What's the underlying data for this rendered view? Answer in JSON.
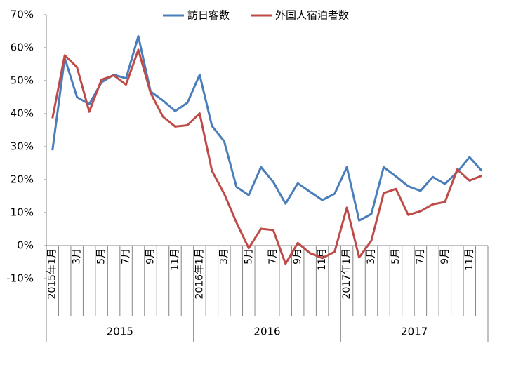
{
  "chart_data": {
    "type": "line",
    "categories": [
      "2015年1月",
      null,
      "3月",
      null,
      "5月",
      null,
      "7月",
      null,
      "9月",
      null,
      "11月",
      null,
      "2016年1月",
      null,
      "3月",
      null,
      "5月",
      null,
      "7月",
      null,
      "9月",
      null,
      "11月",
      null,
      "2017年1月",
      null,
      "3月",
      null,
      "5月",
      null,
      "7月",
      null,
      "9月",
      null,
      "11月",
      null
    ],
    "groups": [
      "2015",
      "2016",
      "2017"
    ],
    "series": [
      {
        "name": "訪日客数",
        "color": "#4a7ebb",
        "values": [
          28.9,
          56.9,
          45,
          42.9,
          49.5,
          51.8,
          50.7,
          63.5,
          46.7,
          44,
          40.8,
          43.3,
          51.8,
          36.3,
          31.6,
          17.8,
          15.3,
          23.8,
          19.3,
          12.7,
          18.9,
          16.3,
          13.8,
          15.7,
          23.8,
          7.6,
          9.6,
          23.8,
          21,
          18,
          16.6,
          20.8,
          18.7,
          22.3,
          26.8,
          22.7
        ]
      },
      {
        "name": "外国人宿泊者数",
        "color": "#be4b48",
        "values": [
          38.6,
          57.7,
          54.1,
          40.6,
          50.3,
          51.6,
          48.8,
          59.4,
          46.3,
          39.1,
          36.1,
          36.5,
          40.1,
          22.7,
          15.7,
          7,
          -0.8,
          5.1,
          4.7,
          -5.5,
          0.8,
          -2.3,
          -3.8,
          -1.9,
          11.5,
          -3.6,
          1.5,
          15.9,
          17.2,
          9.3,
          10.4,
          12.5,
          13.2,
          23.1,
          19.7,
          21.2
        ]
      }
    ],
    "ylim": [
      -10,
      70
    ],
    "yticks": [
      {
        "value": -10,
        "label": "-10%"
      },
      {
        "value": 0,
        "label": "0%"
      },
      {
        "value": 10,
        "label": "10%"
      },
      {
        "value": 20,
        "label": "20%"
      },
      {
        "value": 30,
        "label": "30%"
      },
      {
        "value": 40,
        "label": "40%"
      },
      {
        "value": 50,
        "label": "50%"
      },
      {
        "value": 60,
        "label": "60%"
      },
      {
        "value": 70,
        "label": "70%"
      }
    ],
    "grid": false,
    "legend": "top"
  }
}
